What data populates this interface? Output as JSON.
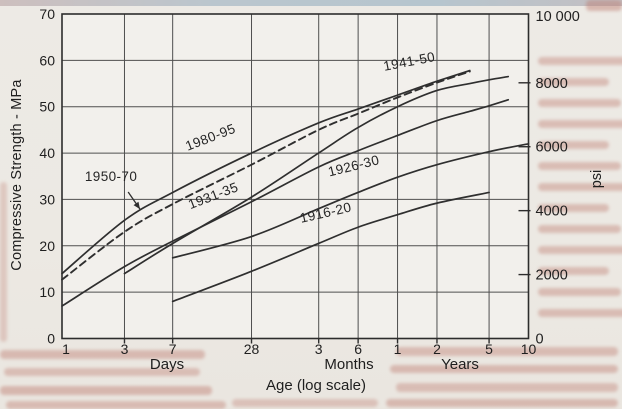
{
  "palette": {
    "curve_line": "#2f2f2f",
    "grid_line": "#4f4f4f",
    "page_background": "#ece9e3",
    "bleed_pink": "#bd7a6e",
    "top_edge_strip": "#b8c6ce"
  },
  "chart_data": {
    "type": "line",
    "title": "",
    "xlabel": "Age (log scale)",
    "ylabel_left": "Compressive Strength - MPa",
    "ylabel_right": "psi",
    "x_scale": "log",
    "x_unit": "days",
    "x_range_days": [
      1,
      3650
    ],
    "grid": true,
    "x_groups": [
      {
        "label": "Days"
      },
      {
        "label": "Months"
      },
      {
        "label": "Years"
      }
    ],
    "x_ticks": [
      {
        "label": "1",
        "days": 1,
        "group": "Days"
      },
      {
        "label": "3",
        "days": 3,
        "group": "Days"
      },
      {
        "label": "7",
        "days": 7,
        "group": "Days"
      },
      {
        "label": "28",
        "days": 28,
        "group": "Days"
      },
      {
        "label": "3",
        "days": 91.25,
        "group": "Months"
      },
      {
        "label": "6",
        "days": 182.5,
        "group": "Months"
      },
      {
        "label": "1",
        "days": 365,
        "group": "Years"
      },
      {
        "label": "2",
        "days": 730,
        "group": "Years"
      },
      {
        "label": "5",
        "days": 1825,
        "group": "Years"
      },
      {
        "label": "10",
        "days": 3650,
        "group": "Years"
      }
    ],
    "y_left": {
      "unit": "MPa",
      "min": 0,
      "max": 70,
      "ticks": [
        0,
        10,
        20,
        30,
        40,
        50,
        60,
        70
      ]
    },
    "y_right": {
      "unit": "psi",
      "min": 0,
      "max": 10000,
      "ticks": [
        {
          "label": "0",
          "psi": 0
        },
        {
          "label": "2000",
          "psi": 2000
        },
        {
          "label": "4000",
          "psi": 4000
        },
        {
          "label": "6000",
          "psi": 6000
        },
        {
          "label": "8000",
          "psi": 8000
        },
        {
          "label": "10 000",
          "psi": 10000
        }
      ]
    },
    "series": [
      {
        "id": "1916-20",
        "name": "1916-20",
        "style": "solid",
        "label_pos": {
          "days": 105,
          "mpa": 26.2,
          "rot": -13
        },
        "points": [
          [
            7,
            8
          ],
          [
            28,
            14.5
          ],
          [
            91,
            20.5
          ],
          [
            182,
            24
          ],
          [
            365,
            26.7
          ],
          [
            730,
            29.2
          ],
          [
            1825,
            31.5
          ]
        ]
      },
      {
        "id": "1926-30",
        "name": "1926-30",
        "style": "solid",
        "label_pos": {
          "days": 172,
          "mpa": 36.3,
          "rot": -14
        },
        "points": [
          [
            7,
            17.4
          ],
          [
            28,
            22
          ],
          [
            91,
            28
          ],
          [
            182,
            31.5
          ],
          [
            365,
            34.8
          ],
          [
            730,
            37.5
          ],
          [
            1825,
            40.3
          ],
          [
            3650,
            42
          ]
        ]
      },
      {
        "id": "1931-35",
        "name": "1931-35",
        "style": "solid",
        "label_pos": {
          "days": 14.7,
          "mpa": 29.9,
          "rot": -21
        },
        "points": [
          [
            1,
            7
          ],
          [
            3,
            15.5
          ],
          [
            7,
            21
          ],
          [
            28,
            29.5
          ],
          [
            91,
            37
          ],
          [
            182,
            40.5
          ],
          [
            365,
            43.8
          ],
          [
            730,
            47
          ],
          [
            1300,
            49
          ],
          [
            1825,
            50.2
          ],
          [
            2555,
            51.5
          ]
        ]
      },
      {
        "id": "1941-50",
        "name": "1941-50",
        "style": "solid",
        "label_pos": {
          "days": 455,
          "mpa": 58.8,
          "rot": -11
        },
        "points": [
          [
            3,
            14
          ],
          [
            7,
            20.5
          ],
          [
            28,
            30.5
          ],
          [
            91,
            40
          ],
          [
            182,
            45.5
          ],
          [
            365,
            50
          ],
          [
            730,
            53.5
          ],
          [
            1300,
            55
          ],
          [
            1825,
            55.8
          ],
          [
            2555,
            56.5
          ]
        ]
      },
      {
        "id": "1980-95",
        "name": "1980-95",
        "style": "solid",
        "label_pos": {
          "days": 14,
          "mpa": 42.5,
          "rot": -21
        },
        "points": [
          [
            1,
            14
          ],
          [
            3,
            25.5
          ],
          [
            7,
            31.5
          ],
          [
            28,
            40
          ],
          [
            91,
            46.5
          ],
          [
            182,
            49.5
          ],
          [
            365,
            52.5
          ],
          [
            730,
            55.5
          ],
          [
            1300,
            57.8
          ]
        ]
      },
      {
        "id": "1950-70",
        "name": "1950-70",
        "style": "dashed",
        "label_pos": {
          "days": 2.37,
          "mpa": 34,
          "rot": 0
        },
        "points": [
          [
            1,
            12.7
          ],
          [
            3,
            23
          ],
          [
            7,
            29
          ],
          [
            28,
            37.5
          ],
          [
            91,
            45
          ],
          [
            182,
            48.5
          ],
          [
            365,
            52
          ],
          [
            730,
            55.2
          ],
          [
            1300,
            57.6
          ]
        ]
      }
    ],
    "pointer_arrow": {
      "for_series": "1950-70",
      "from": {
        "days": 3.2,
        "mpa": 31.6
      },
      "to": {
        "days": 3.94,
        "mpa": 27.9
      }
    }
  }
}
